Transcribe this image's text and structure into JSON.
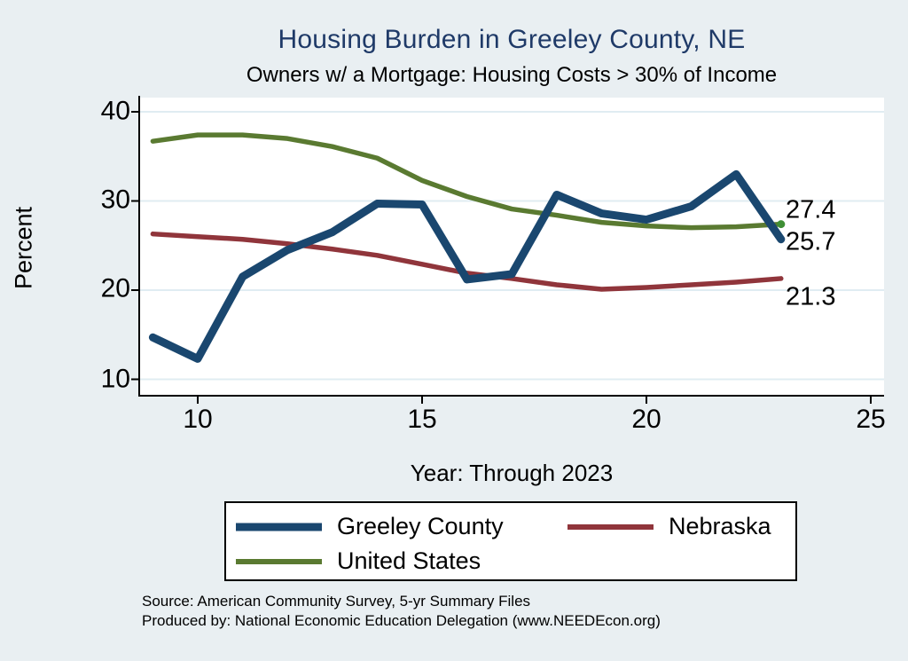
{
  "page": {
    "title": "Housing Burden in Greeley County, NE",
    "subtitle": "Owners w/ a Mortgage: Housing Costs > 30% of Income",
    "source_line1": "Source: American Community Survey, 5-yr Summary Files",
    "source_line2": "Produced by: National Economic Education Delegation (www.NEEDEcon.org)"
  },
  "colors": {
    "background": "#e9eff2",
    "plot_background": "#ffffff",
    "gridline": "#e0ecf2",
    "axis": "#000000",
    "title": "#1f3a68",
    "greeley": "#1a476f",
    "nebraska": "#90353b",
    "united_states": "#5a7a31",
    "end_marker": "#3f8f35"
  },
  "chart_data": {
    "type": "line",
    "title": "Housing Burden in Greeley County, NE",
    "subtitle": "Owners w/ a Mortgage: Housing Costs > 30% of Income",
    "xlabel": "Year: Through 2023",
    "ylabel": "Percent",
    "x": [
      9,
      10,
      11,
      12,
      13,
      14,
      15,
      16,
      17,
      18,
      19,
      20,
      21,
      22,
      23
    ],
    "series": [
      {
        "name": "Greeley County",
        "color": "#1a476f",
        "stroke_width": 9,
        "values": [
          14.7,
          12.3,
          21.5,
          24.5,
          26.5,
          29.7,
          29.6,
          21.2,
          21.8,
          30.7,
          28.6,
          27.9,
          29.4,
          33.0,
          25.7
        ]
      },
      {
        "name": "Nebraska",
        "color": "#90353b",
        "stroke_width": 5.5,
        "values": [
          26.3,
          26.0,
          25.7,
          25.2,
          24.6,
          23.9,
          22.9,
          21.9,
          21.3,
          20.6,
          20.1,
          20.3,
          20.6,
          20.9,
          21.3
        ]
      },
      {
        "name": "United States",
        "color": "#5a7a31",
        "stroke_width": 5.5,
        "end_marker": true,
        "values": [
          36.7,
          37.4,
          37.4,
          37.0,
          36.1,
          34.8,
          32.3,
          30.5,
          29.1,
          28.4,
          27.6,
          27.2,
          27.0,
          27.1,
          27.4
        ]
      }
    ],
    "end_labels": [
      {
        "text": "27.4",
        "series": "United States"
      },
      {
        "text": "25.7",
        "series": "Greeley County"
      },
      {
        "text": "21.3",
        "series": "Nebraska"
      }
    ],
    "xticks": [
      10,
      15,
      20,
      25
    ],
    "yticks": [
      40,
      30,
      20,
      10
    ],
    "xlim": [
      8.7,
      25.3
    ],
    "ylim": [
      8.2,
      41.6
    ],
    "grid": "horizontal",
    "legend_position": "bottom"
  },
  "legend": {
    "items": [
      {
        "label": "Greeley County",
        "color": "#1a476f",
        "swatch_height": 9
      },
      {
        "label": "Nebraska",
        "color": "#90353b",
        "swatch_height": 6
      },
      {
        "label": "United States",
        "color": "#5a7a31",
        "swatch_height": 6
      }
    ]
  }
}
